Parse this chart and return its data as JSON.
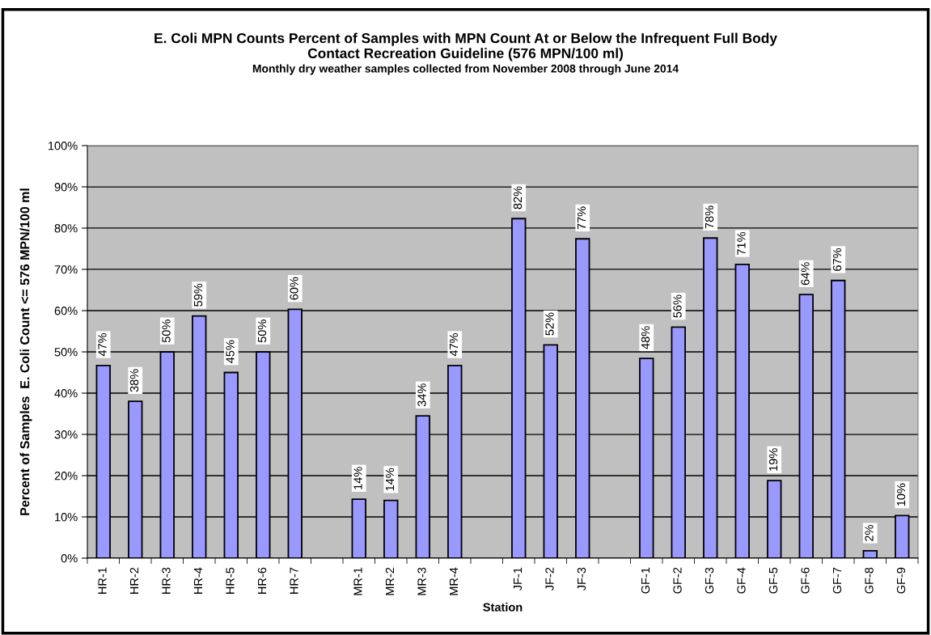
{
  "chart_data": {
    "type": "bar",
    "title": "E. Coli MPN Counts Percent of Samples with MPN Count At or Below the Infrequent Full Body\nContact Recreation Guideline (576 MPN/100 ml)",
    "subtitle": "Monthly dry weather samples collected from November 2008 through June 2014",
    "xlabel": "Station",
    "ylabel": "Percent of Samples  E. Coli Count <= 576 MPN/100 ml",
    "categories": [
      "HR-1",
      "HR-2",
      "HR-3",
      "HR-4",
      "HR-5",
      "HR-6",
      "HR-7",
      null,
      "MR-1",
      "MR-2",
      "MR-3",
      "MR-4",
      null,
      "JF-1",
      "JF-2",
      "JF-3",
      null,
      "GF-1",
      "GF-2",
      "GF-3",
      "GF-4",
      "GF-5",
      "GF-6",
      "GF-7",
      "GF-8",
      "GF-9"
    ],
    "values": [
      46.7,
      38,
      50,
      58.7,
      45,
      50,
      60.3,
      null,
      14.3,
      14,
      34.5,
      46.7,
      null,
      82.3,
      51.7,
      77.4,
      null,
      48.4,
      56,
      77.6,
      71.2,
      18.8,
      63.9,
      67.3,
      1.8,
      10.3
    ],
    "value_labels": [
      "47%",
      "38%",
      "50%",
      "59%",
      "45%",
      "50%",
      "60%",
      null,
      "14%",
      "14%",
      "34%",
      "47%",
      null,
      "82%",
      "52%",
      "77%",
      null,
      "48%",
      "56%",
      "78%",
      "71%",
      "19%",
      "64%",
      "67%",
      "2%",
      "10%"
    ],
    "color": "#9999ff",
    "ylim": [
      0,
      100
    ],
    "yticks": [
      {
        "value": 0,
        "label": "0%"
      },
      {
        "value": 10,
        "label": "10%"
      },
      {
        "value": 20,
        "label": "20%"
      },
      {
        "value": 30,
        "label": "30%"
      },
      {
        "value": 40,
        "label": "40%"
      },
      {
        "value": 50,
        "label": "50%"
      },
      {
        "value": 60,
        "label": "60%"
      },
      {
        "value": 70,
        "label": "70%"
      },
      {
        "value": 80,
        "label": "80%"
      },
      {
        "value": 90,
        "label": "90%"
      },
      {
        "value": 100,
        "label": "100%"
      }
    ],
    "grid": "y",
    "legend": false
  }
}
